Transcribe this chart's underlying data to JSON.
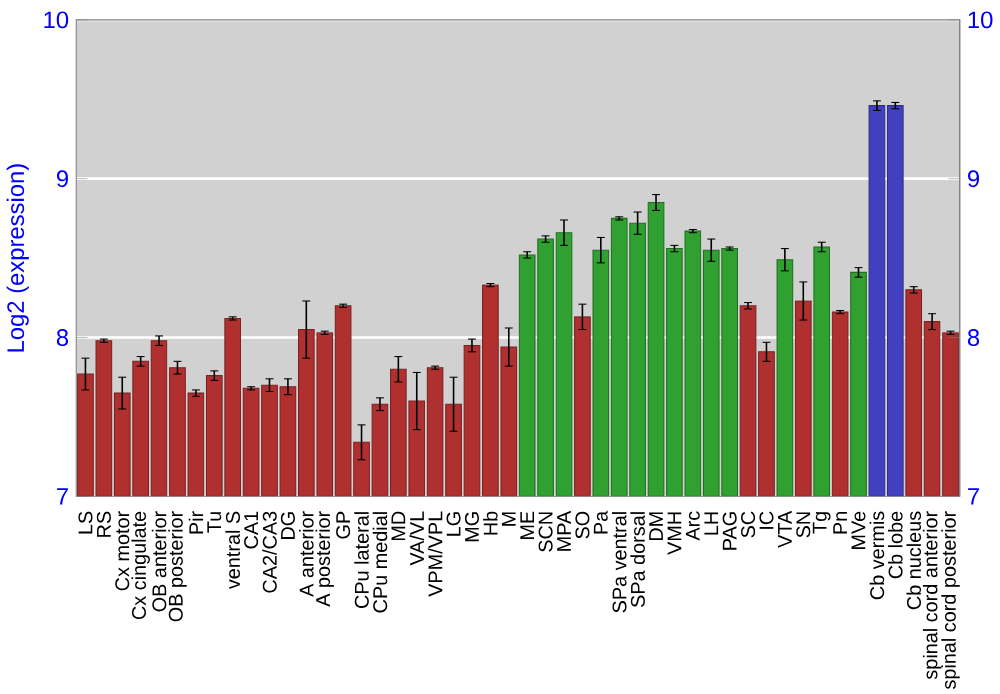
{
  "chart_data": {
    "type": "bar",
    "ylabel": "Log2 (expression)",
    "categories": [
      "LS",
      "RS",
      "Cx motor",
      "Cx cingulate",
      "OB anterior",
      "OB posterior",
      "Pir",
      "Tu",
      "ventral S",
      "CA1",
      "CA2/CA3",
      "DG",
      "A anterior",
      "A posterior",
      "GP",
      "CPu lateral",
      "CPu medial",
      "MD",
      "VA/VL",
      "VPM/VPL",
      "LG",
      "MG",
      "Hb",
      "M",
      "ME",
      "SCN",
      "MPA",
      "SO",
      "Pa",
      "SPa ventral",
      "SPa dorsal",
      "DM",
      "VMH",
      "Arc",
      "LH",
      "PAG",
      "SC",
      "IC",
      "VTA",
      "SN",
      "Tg",
      "Pn",
      "MVe",
      "Cb vermis",
      "Cb lobe",
      "Cb nucleus",
      "spinal cord anterior",
      "spinal cord posterior"
    ],
    "values": [
      7.77,
      7.98,
      7.65,
      7.85,
      7.98,
      7.81,
      7.65,
      7.76,
      8.12,
      7.68,
      7.7,
      7.69,
      8.05,
      8.03,
      8.2,
      7.34,
      7.58,
      7.8,
      7.6,
      7.81,
      7.58,
      7.95,
      8.33,
      7.94,
      8.52,
      8.62,
      8.66,
      8.13,
      8.55,
      8.75,
      8.72,
      8.85,
      8.56,
      8.67,
      8.55,
      8.56,
      8.2,
      7.91,
      8.49,
      8.23,
      8.57,
      8.16,
      8.41,
      9.46,
      9.46,
      8.3,
      8.1,
      8.03
    ],
    "errors": [
      0.1,
      0.01,
      0.1,
      0.03,
      0.03,
      0.04,
      0.02,
      0.03,
      0.01,
      0.01,
      0.04,
      0.05,
      0.18,
      0.01,
      0.01,
      0.11,
      0.04,
      0.08,
      0.18,
      0.01,
      0.17,
      0.04,
      0.01,
      0.12,
      0.02,
      0.02,
      0.08,
      0.08,
      0.08,
      0.01,
      0.07,
      0.05,
      0.02,
      0.01,
      0.07,
      0.01,
      0.02,
      0.06,
      0.07,
      0.12,
      0.03,
      0.01,
      0.03,
      0.03,
      0.02,
      0.02,
      0.05,
      0.01
    ],
    "colors": [
      "#b03030",
      "#b03030",
      "#b03030",
      "#b03030",
      "#b03030",
      "#b03030",
      "#b03030",
      "#b03030",
      "#b03030",
      "#b03030",
      "#b03030",
      "#b03030",
      "#b03030",
      "#b03030",
      "#b03030",
      "#b03030",
      "#b03030",
      "#b03030",
      "#b03030",
      "#b03030",
      "#b03030",
      "#b03030",
      "#b03030",
      "#b03030",
      "#30a030",
      "#30a030",
      "#30a030",
      "#b03030",
      "#30a030",
      "#30a030",
      "#30a030",
      "#30a030",
      "#30a030",
      "#30a030",
      "#30a030",
      "#30a030",
      "#b03030",
      "#b03030",
      "#30a030",
      "#b03030",
      "#30a030",
      "#b03030",
      "#30a030",
      "#4040c0",
      "#4040c0",
      "#b03030",
      "#b03030",
      "#b03030"
    ],
    "ylim": [
      7,
      10
    ],
    "yticks": [
      7,
      8,
      9,
      10
    ],
    "y2lim": [
      7,
      10
    ],
    "y2ticks": [
      7,
      8,
      9,
      10
    ],
    "grid": "y"
  }
}
